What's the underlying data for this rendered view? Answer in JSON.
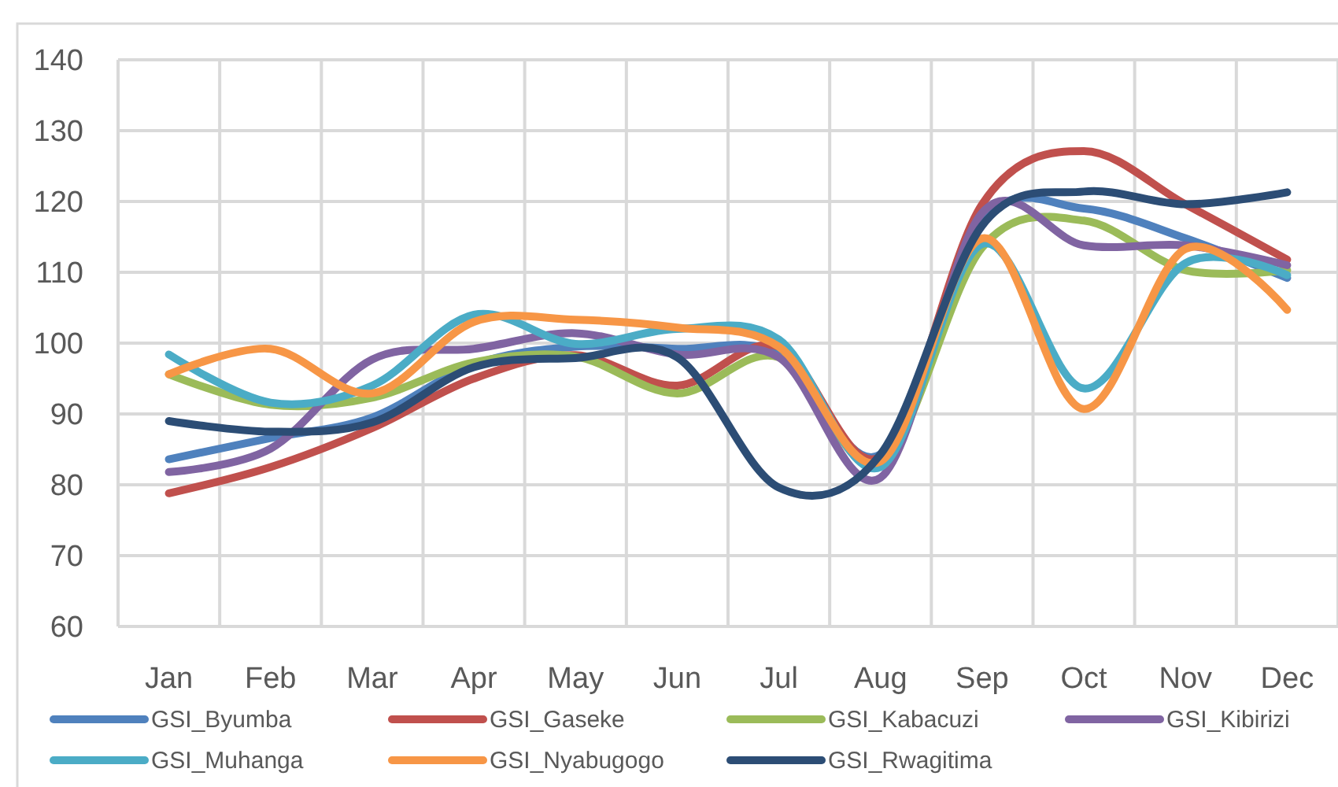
{
  "chart_data": {
    "type": "line",
    "categories": [
      "Jan",
      "Feb",
      "Mar",
      "Apr",
      "May",
      "Jun",
      "Jul",
      "Aug",
      "Sep",
      "Oct",
      "Nov",
      "Dec"
    ],
    "series": [
      {
        "name": "GSI_Byumba",
        "color": "#4f81bd",
        "values": [
          83.6,
          86.6,
          89.5,
          97,
          99.5,
          99.2,
          98.5,
          84.3,
          117.3,
          119,
          114.8,
          109.2
        ]
      },
      {
        "name": "GSI_Gaseke",
        "color": "#c0504d",
        "values": [
          78.8,
          82.5,
          88,
          95,
          98.3,
          94,
          99.5,
          84,
          119.6,
          127.1,
          119.6,
          111.8
        ]
      },
      {
        "name": "GSI_Kabacuzi",
        "color": "#9bbb59",
        "values": [
          95.6,
          91.3,
          92.3,
          97.3,
          98.1,
          92.9,
          98,
          83,
          113.5,
          117.3,
          110.3,
          110.3
        ]
      },
      {
        "name": "GSI_Kibirizi",
        "color": "#8064a2",
        "values": [
          81.8,
          85.1,
          97.7,
          99.2,
          101.4,
          98.4,
          98,
          81,
          118.4,
          113.8,
          113.8,
          111
        ]
      },
      {
        "name": "GSI_Muhanga",
        "color": "#4bacc6",
        "values": [
          98.4,
          91.6,
          94,
          104,
          99.9,
          102,
          100.5,
          82.5,
          114,
          93.6,
          111.3,
          109.6
        ]
      },
      {
        "name": "GSI_Nyabugogo",
        "color": "#f79646",
        "values": [
          95.6,
          99.2,
          92.9,
          103,
          103.3,
          102.2,
          99.5,
          83.3,
          114.8,
          90.7,
          113.3,
          104.7
        ]
      },
      {
        "name": "GSI_Rwagitima",
        "color": "#2c4d75",
        "values": [
          89,
          87.5,
          88.8,
          96.6,
          97.9,
          98,
          79.6,
          84.3,
          116.6,
          121.4,
          119.6,
          121.3
        ]
      }
    ],
    "ylim": [
      60,
      140
    ],
    "yticks": [
      60,
      70,
      80,
      90,
      100,
      110,
      120,
      130,
      140
    ],
    "grid": true,
    "legend": "bottom"
  }
}
